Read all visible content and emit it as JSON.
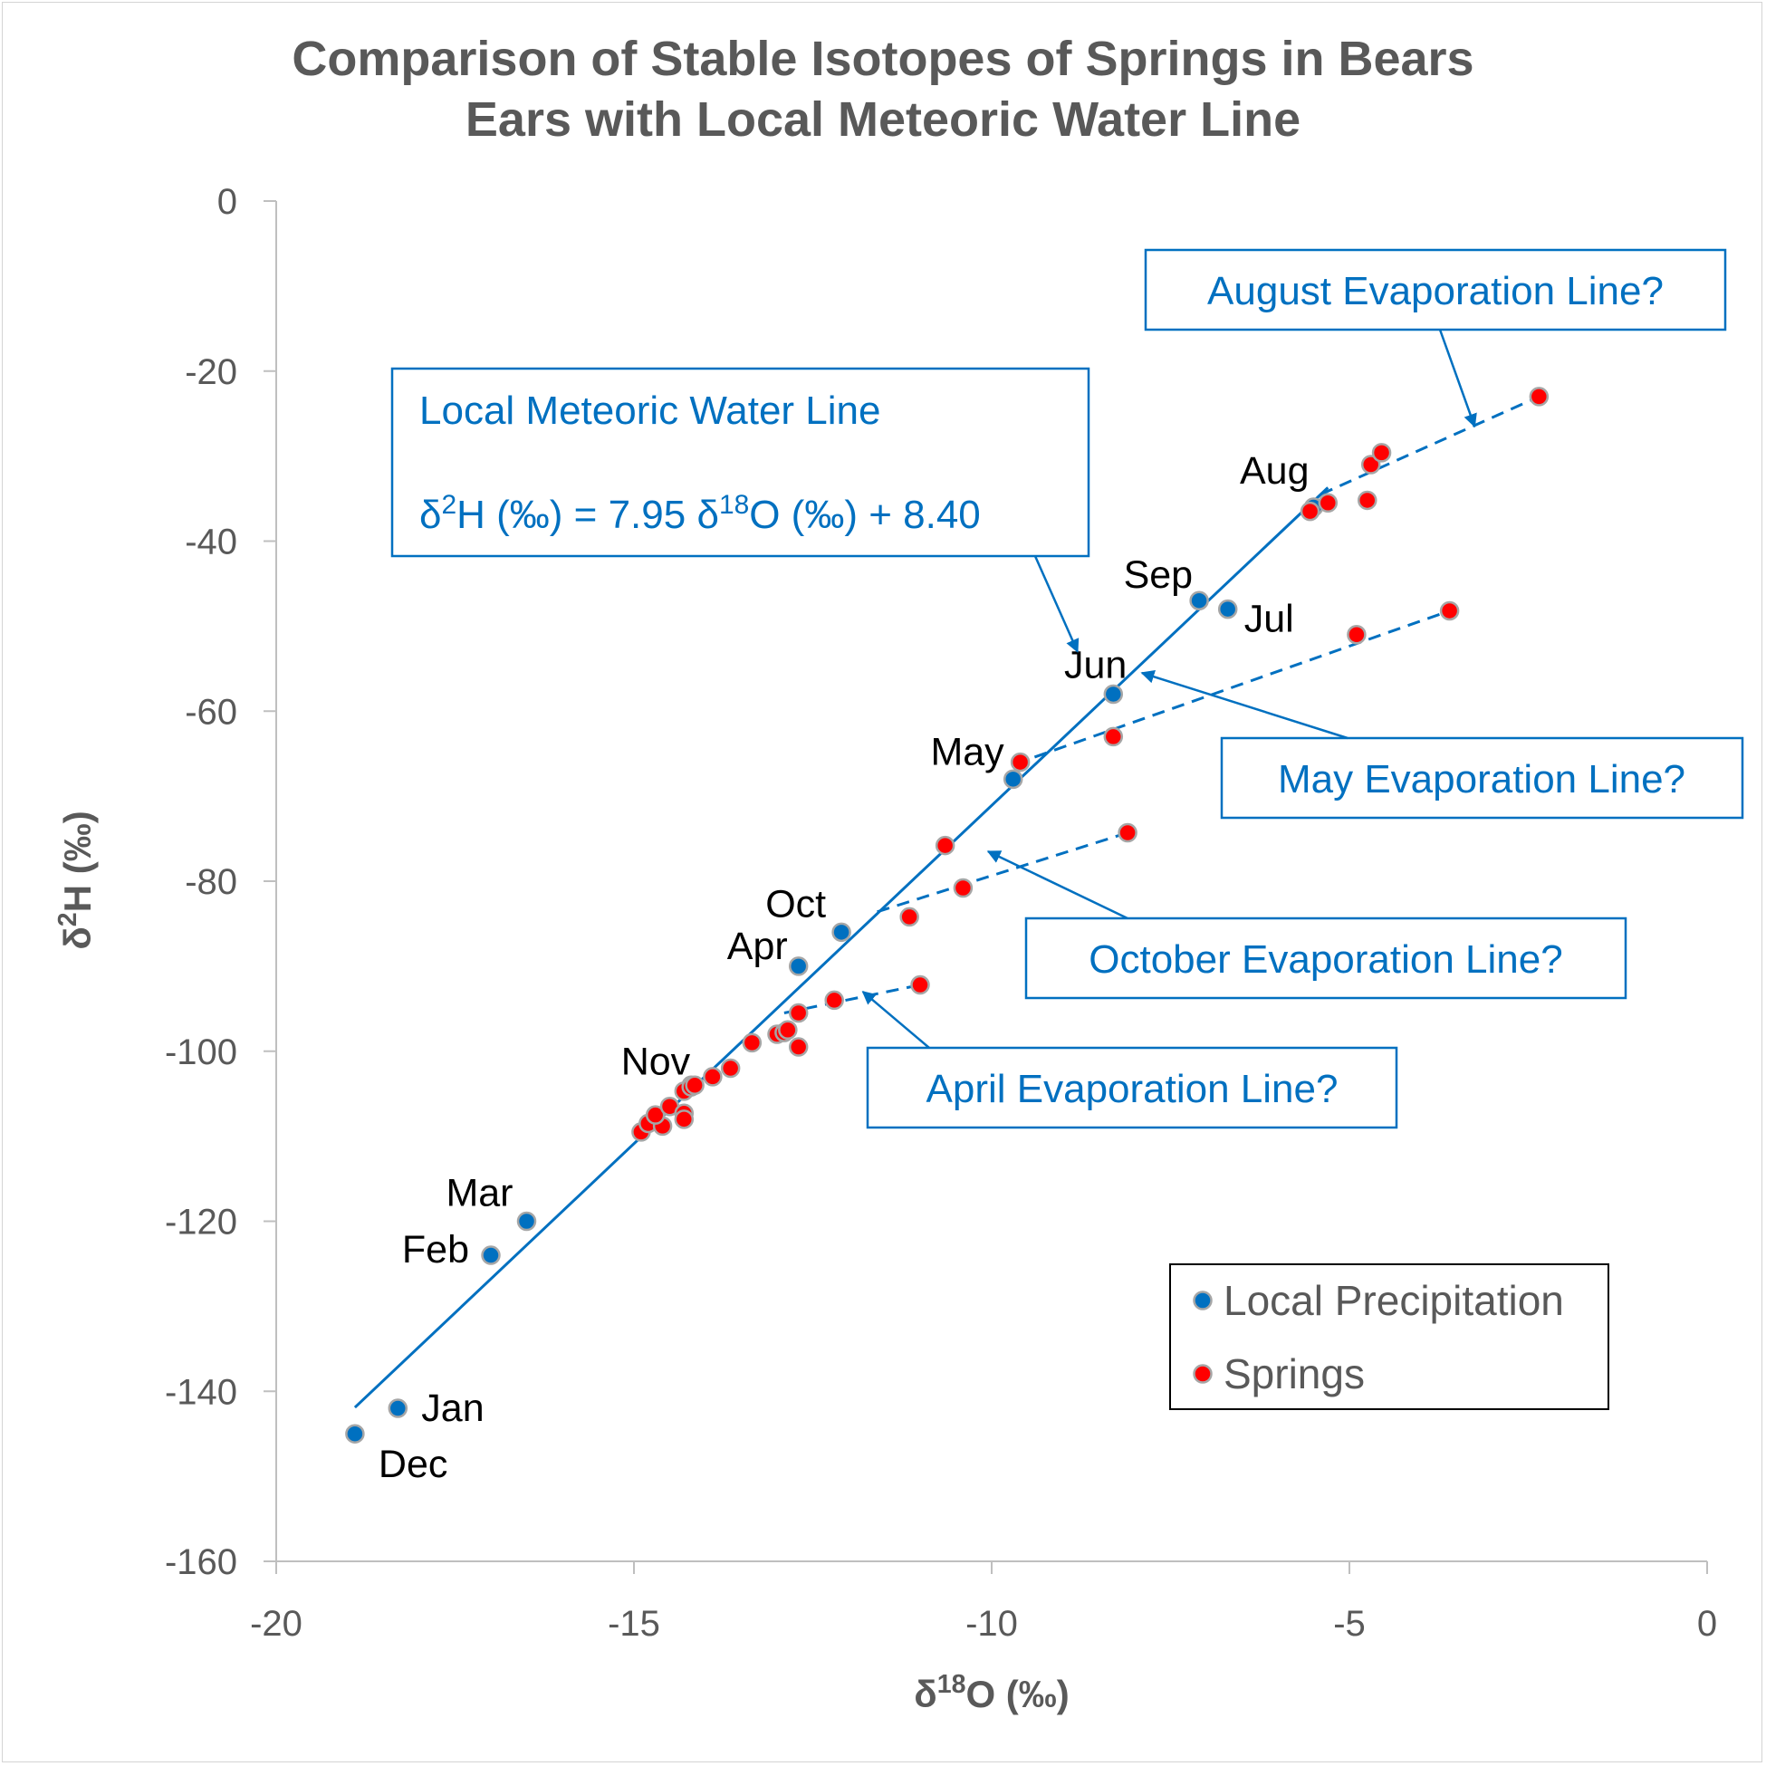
{
  "chart_data": {
    "type": "scatter",
    "title_lines": [
      "Comparison of Stable Isotopes of Springs in Bears",
      "Ears with Local Meteoric Water Line"
    ],
    "xlabel": "δ18O (‰)",
    "ylabel": "δ2H (‰)",
    "xlim": [
      -20,
      0
    ],
    "ylim": [
      -160,
      0
    ],
    "x_ticks": [
      -20,
      -15,
      -10,
      -5,
      0
    ],
    "x_tick_labels": [
      "-20",
      "-15",
      "-10",
      "-5",
      "0"
    ],
    "y_ticks": [
      0,
      -20,
      -40,
      -60,
      -80,
      -100,
      -120,
      -140,
      -160
    ],
    "y_tick_labels": [
      "0",
      "-20",
      "-40",
      "-60",
      "-80",
      "-100",
      "-120",
      "-140",
      "-160"
    ],
    "grid": false,
    "legend_placement": "bottom-right",
    "series": [
      {
        "name": "Local Precipitation",
        "color": "#0070c0",
        "points": [
          {
            "x": -18.9,
            "y": -145,
            "label": "Dec"
          },
          {
            "x": -18.3,
            "y": -142,
            "label": "Jan"
          },
          {
            "x": -17.0,
            "y": -124,
            "label": "Feb"
          },
          {
            "x": -16.5,
            "y": -120,
            "label": "Mar"
          },
          {
            "x": -12.7,
            "y": -90,
            "label": "Apr"
          },
          {
            "x": -9.7,
            "y": -68,
            "label": "May"
          },
          {
            "x": -8.3,
            "y": -58,
            "label": "Jun"
          },
          {
            "x": -6.7,
            "y": -48,
            "label": "Jul"
          },
          {
            "x": -5.5,
            "y": -36,
            "label": "Aug"
          },
          {
            "x": -7.1,
            "y": -47,
            "label": "Sep"
          },
          {
            "x": -12.1,
            "y": -86,
            "label": "Oct"
          },
          {
            "x": -14.2,
            "y": -104,
            "label": "Nov"
          }
        ]
      },
      {
        "name": "Springs",
        "color": "#ff0000",
        "points": [
          {
            "x": -14.9,
            "y": -109.5
          },
          {
            "x": -14.8,
            "y": -108.5
          },
          {
            "x": -14.6,
            "y": -108.8
          },
          {
            "x": -14.7,
            "y": -107.5
          },
          {
            "x": -14.5,
            "y": -106.5
          },
          {
            "x": -14.3,
            "y": -107.3
          },
          {
            "x": -14.3,
            "y": -108
          },
          {
            "x": -14.3,
            "y": -104.7
          },
          {
            "x": -14.2,
            "y": -104.2
          },
          {
            "x": -14.15,
            "y": -104
          },
          {
            "x": -13.9,
            "y": -103
          },
          {
            "x": -13.65,
            "y": -102
          },
          {
            "x": -13.35,
            "y": -99
          },
          {
            "x": -13.0,
            "y": -98
          },
          {
            "x": -12.9,
            "y": -97.8
          },
          {
            "x": -12.85,
            "y": -97.5
          },
          {
            "x": -12.7,
            "y": -99.5
          },
          {
            "x": -12.7,
            "y": -95.5
          },
          {
            "x": -12.2,
            "y": -94
          },
          {
            "x": -11.0,
            "y": -92.2
          },
          {
            "x": -11.15,
            "y": -84.2
          },
          {
            "x": -10.4,
            "y": -80.8
          },
          {
            "x": -8.1,
            "y": -74.3
          },
          {
            "x": -10.65,
            "y": -75.8
          },
          {
            "x": -9.6,
            "y": -66
          },
          {
            "x": -8.3,
            "y": -63
          },
          {
            "x": -4.9,
            "y": -51
          },
          {
            "x": -3.6,
            "y": -48.2
          },
          {
            "x": -5.55,
            "y": -36.5
          },
          {
            "x": -5.3,
            "y": -35.5
          },
          {
            "x": -4.75,
            "y": -35.2
          },
          {
            "x": -4.7,
            "y": -31
          },
          {
            "x": -4.55,
            "y": -29.6
          },
          {
            "x": -2.35,
            "y": -23
          }
        ]
      }
    ],
    "lines": [
      {
        "name": "Local Meteoric Water Line",
        "style": "solid",
        "color": "#0070c0",
        "from": [
          -18.9,
          -141.9
        ],
        "to": [
          -5.3,
          -33.7
        ]
      },
      {
        "name": "August Evaporation Line?",
        "style": "dashed",
        "color": "#0070c0",
        "from": [
          -5.4,
          -34.5
        ],
        "to": [
          -2.35,
          -23
        ]
      },
      {
        "name": "May Evaporation Line?",
        "style": "dashed",
        "color": "#0070c0",
        "from": [
          -9.4,
          -65.4
        ],
        "to": [
          -3.6,
          -48.2
        ]
      },
      {
        "name": "October Evaporation Line?",
        "style": "dashed",
        "color": "#0070c0",
        "from": [
          -11.6,
          -83.6
        ],
        "to": [
          -8.1,
          -74.3
        ]
      },
      {
        "name": "April Evaporation Line?",
        "style": "dashed",
        "color": "#0070c0",
        "from": [
          -12.9,
          -95.5
        ],
        "to": [
          -11.0,
          -92.2
        ]
      }
    ],
    "annotations": [
      {
        "lines": [
          "Local Meteoric Water Line",
          "δ2H (‰) = 7.95 δ18O (‰) + 8.40"
        ],
        "arrow_target": [
          -8.8,
          -53
        ]
      },
      {
        "lines": [
          "August Evaporation Line?"
        ],
        "arrow_target": [
          -3.25,
          -26.5
        ]
      },
      {
        "lines": [
          "May Evaporation Line?"
        ],
        "arrow_target": [
          -7.9,
          -55.5
        ]
      },
      {
        "lines": [
          "October Evaporation Line?"
        ],
        "arrow_target": [
          -10.05,
          -76.5
        ]
      },
      {
        "lines": [
          "April Evaporation Line?"
        ],
        "arrow_target": [
          -11.8,
          -93
        ]
      }
    ],
    "legend": [
      "Local Precipitation",
      "Springs"
    ]
  }
}
